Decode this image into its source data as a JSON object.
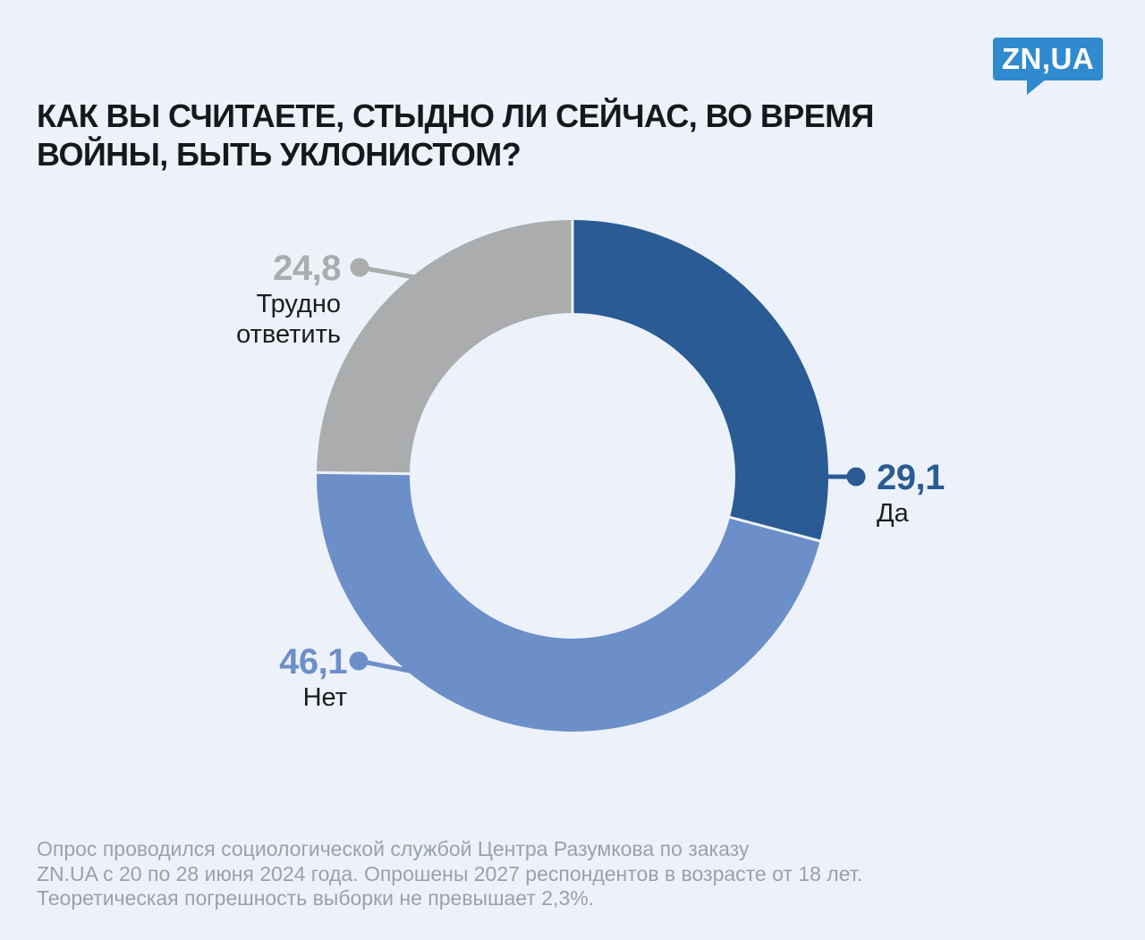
{
  "page": {
    "background_color": "#edf2fa"
  },
  "logo": {
    "text": "ZN,UA",
    "background_color": "#2f8bcd",
    "text_color": "#ffffff"
  },
  "title": "КАК ВЫ СЧИТАЕТЕ, СТЫДНО ЛИ СЕЙЧАС, ВО ВРЕМЯ\nВОЙНЫ, БЫТЬ УКЛОНИСТОМ?",
  "chart_data": {
    "type": "pie",
    "subtype": "donut",
    "title": "КАК ВЫ СЧИТАЕТЕ, СТЫДНО ЛИ СЕЙЧАС, ВО ВРЕМЯ ВОЙНЫ, БЫТЬ УКЛОНИСТОМ?",
    "unit": "percent",
    "start_angle_deg": 0,
    "direction": "clockwise",
    "legend_position": "callouts",
    "segments": [
      {
        "label": "Да",
        "value": 29.1,
        "display_value": "29,1",
        "color": "#2a5b94"
      },
      {
        "label": "Нет",
        "value": 46.1,
        "display_value": "46,1",
        "color": "#6d8fc9"
      },
      {
        "label": "Трудно ответить",
        "value": 24.8,
        "display_value": "24,8",
        "color": "#aaacae"
      }
    ]
  },
  "callouts": {
    "yes": {
      "value": "29,1",
      "label": "Да"
    },
    "no": {
      "value": "46,1",
      "label": "Нет"
    },
    "hard": {
      "value": "24,8",
      "label": "Трудно\nответить"
    }
  },
  "footer": {
    "text": "Опрос проводился социологической службой Центра Разумкова по заказу\nZN.UA с 20 по 28 июня 2024 года. Опрошены 2027 респондентов в возрасте от 18 лет.\nТеоретическая погрешность выборки не превышает 2,3%.",
    "color": "#99a1ab"
  }
}
